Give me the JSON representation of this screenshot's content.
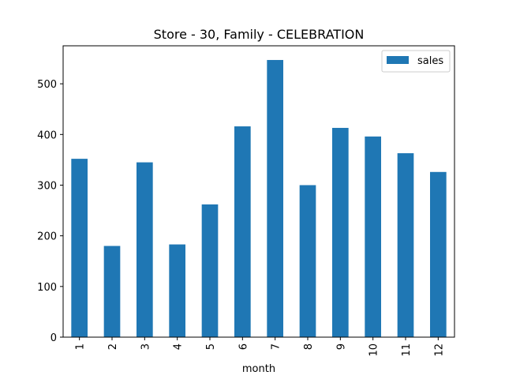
{
  "chart_data": {
    "type": "bar",
    "title": "Store - 30, Family - CELEBRATION",
    "xlabel": "month",
    "ylabel": "",
    "categories": [
      "1",
      "2",
      "3",
      "4",
      "5",
      "6",
      "7",
      "8",
      "9",
      "10",
      "11",
      "12"
    ],
    "series": [
      {
        "name": "sales",
        "color": "#1f77b4",
        "values": [
          352,
          180,
          345,
          183,
          262,
          416,
          547,
          300,
          413,
          396,
          363,
          326
        ]
      }
    ],
    "ylim": [
      0,
      575
    ],
    "yticks": [
      0,
      100,
      200,
      300,
      400,
      500
    ],
    "grid": false,
    "legend_position": "top-right"
  }
}
